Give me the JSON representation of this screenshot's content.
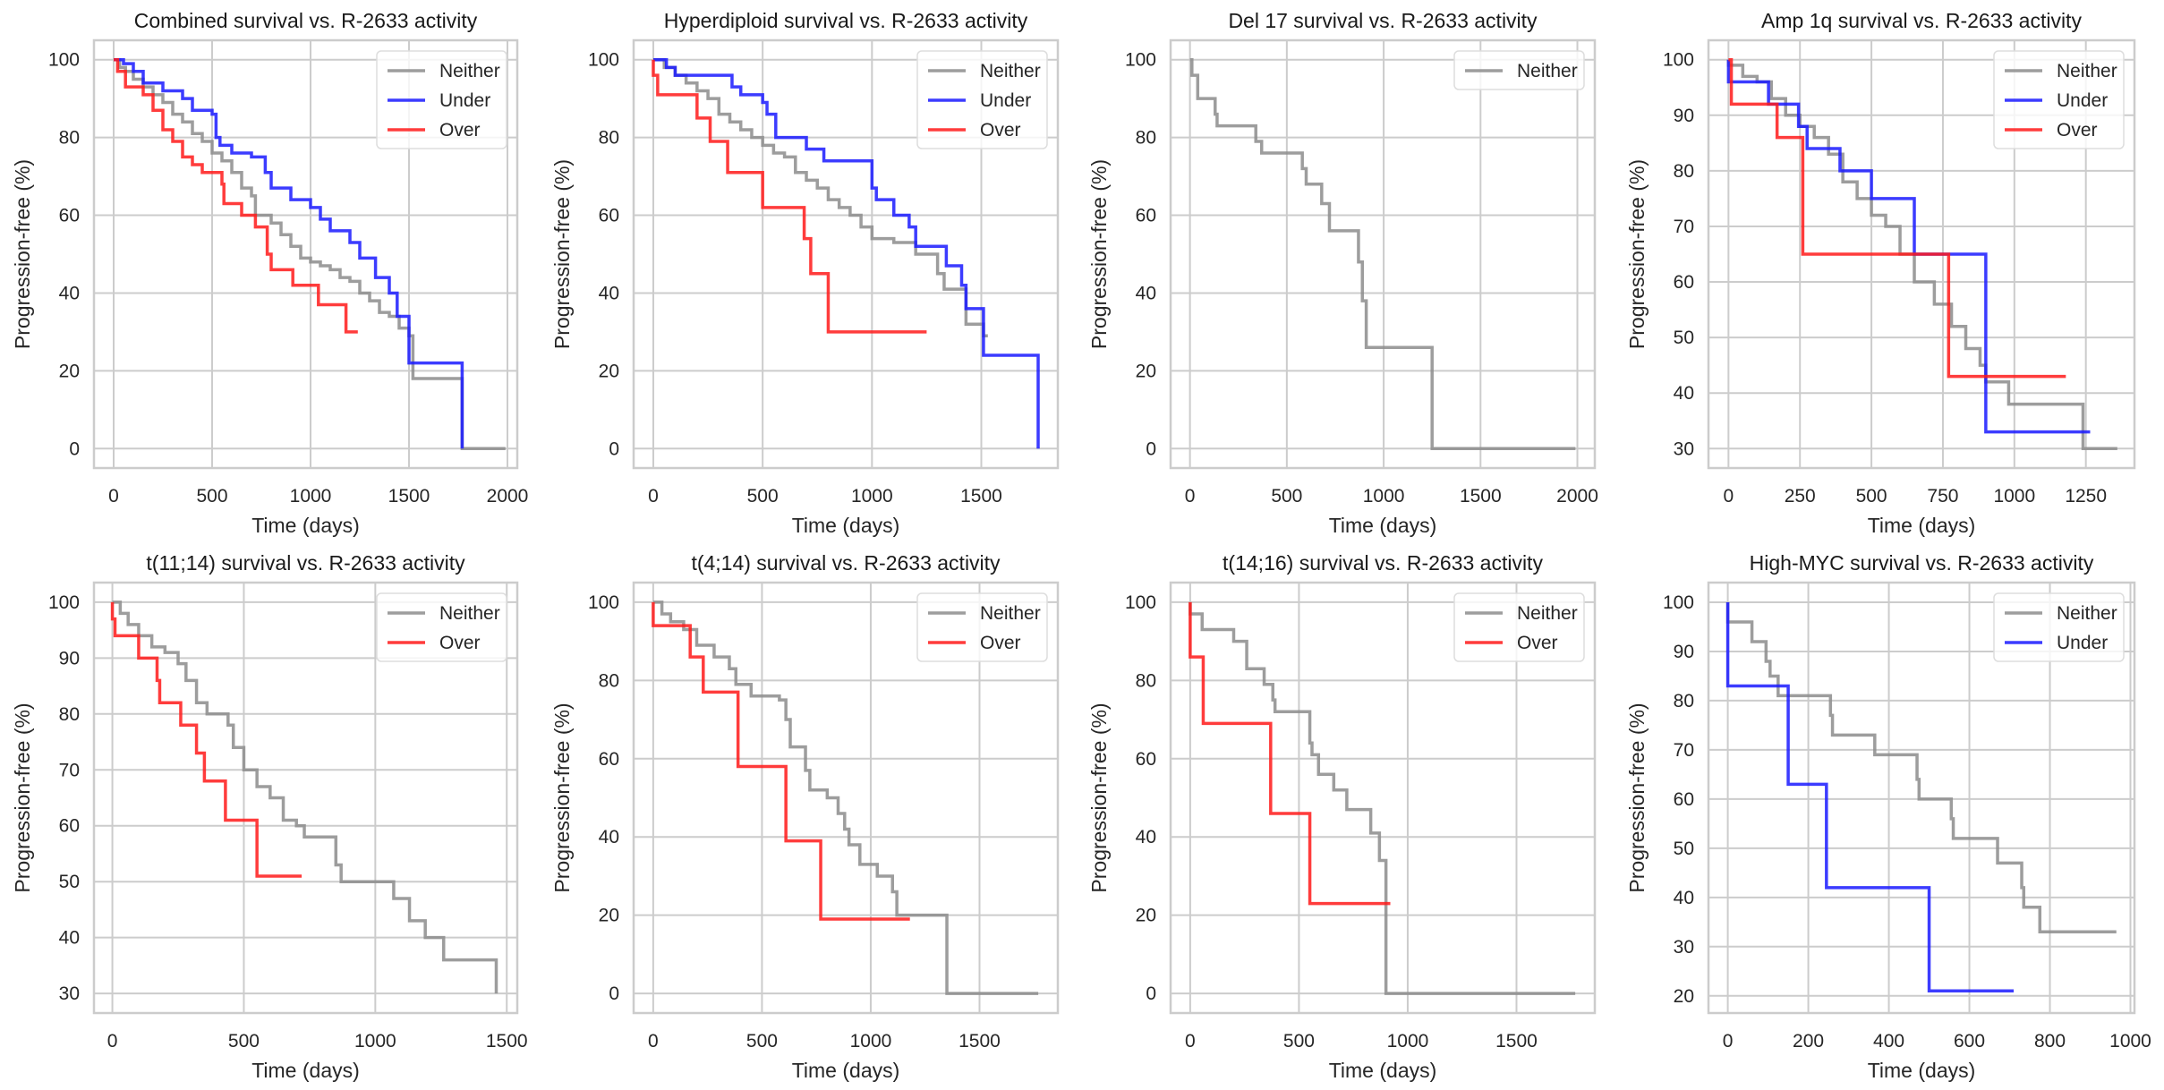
{
  "figure": {
    "layout": "2x4 grid of Kaplan-Meier step plots",
    "colors": {
      "Neither": "#8c8c8c",
      "Under": "#1a1aff",
      "Over": "#ff1a1a",
      "grid": "#cccccc",
      "frame": "#cccccc"
    }
  },
  "chart_data": [
    {
      "type": "line",
      "step": true,
      "title": "Combined survival vs. R-2633 activity",
      "xlabel": "Time (days)",
      "ylabel": "Progression-free (%)",
      "xlim": [
        -100,
        2050
      ],
      "ylim": [
        -5,
        105
      ],
      "xticks": [
        0,
        500,
        1000,
        1500,
        2000
      ],
      "yticks": [
        0,
        20,
        40,
        60,
        80,
        100
      ],
      "grid": true,
      "legend": "top-right",
      "series": [
        {
          "name": "Neither",
          "x": [
            0,
            30,
            60,
            100,
            150,
            200,
            250,
            300,
            350,
            400,
            450,
            500,
            550,
            600,
            650,
            700,
            720,
            800,
            850,
            900,
            950,
            1000,
            1050,
            1100,
            1150,
            1200,
            1250,
            1300,
            1350,
            1400,
            1450,
            1500,
            1520,
            1770,
            1990
          ],
          "y": [
            100,
            98,
            97,
            95,
            93,
            91,
            89,
            86,
            84,
            81,
            79,
            76,
            74,
            71,
            67,
            65,
            60,
            58,
            55,
            52,
            49,
            48,
            47,
            46,
            44,
            43,
            40,
            38,
            35,
            34,
            31,
            29,
            18,
            0,
            0
          ]
        },
        {
          "name": "Under",
          "x": [
            0,
            50,
            100,
            150,
            250,
            350,
            400,
            500,
            520,
            540,
            600,
            700,
            770,
            800,
            900,
            1000,
            1050,
            1100,
            1200,
            1250,
            1330,
            1400,
            1440,
            1500,
            1770
          ],
          "y": [
            100,
            99,
            97,
            94,
            92,
            90,
            87,
            86,
            80,
            78,
            76,
            75,
            71,
            67,
            64,
            62,
            59,
            56,
            53,
            49,
            44,
            40,
            34,
            22,
            0
          ]
        },
        {
          "name": "Over",
          "x": [
            0,
            20,
            60,
            150,
            200,
            250,
            300,
            350,
            400,
            450,
            550,
            560,
            650,
            720,
            780,
            800,
            910,
            1040,
            1180,
            1240
          ],
          "y": [
            100,
            97,
            93,
            91,
            87,
            82,
            79,
            75,
            73,
            71,
            68,
            63,
            60,
            57,
            50,
            46,
            42,
            37,
            30,
            30
          ]
        }
      ]
    },
    {
      "type": "line",
      "step": true,
      "title": "Hyperdiploid survival vs. R-2633 activity",
      "xlabel": "Time (days)",
      "ylabel": "Progression-free (%)",
      "xlim": [
        -90,
        1850
      ],
      "ylim": [
        -5,
        105
      ],
      "xticks": [
        0,
        500,
        1000,
        1500
      ],
      "yticks": [
        0,
        20,
        40,
        60,
        80,
        100
      ],
      "grid": true,
      "legend": "top-right",
      "series": [
        {
          "name": "Neither",
          "x": [
            0,
            50,
            100,
            150,
            200,
            250,
            300,
            350,
            400,
            450,
            500,
            550,
            600,
            650,
            700,
            750,
            800,
            850,
            900,
            950,
            1000,
            1100,
            1200,
            1300,
            1330,
            1430,
            1510,
            1530
          ],
          "y": [
            100,
            98,
            96,
            94,
            92,
            90,
            86,
            84,
            82,
            80,
            78,
            76,
            75,
            71,
            69,
            67,
            64,
            62,
            60,
            57,
            54,
            53,
            50,
            45,
            41,
            32,
            29,
            29
          ]
        },
        {
          "name": "Under",
          "x": [
            0,
            60,
            100,
            340,
            360,
            400,
            500,
            520,
            560,
            700,
            780,
            1000,
            1020,
            1100,
            1170,
            1200,
            1340,
            1410,
            1430,
            1510,
            1760
          ],
          "y": [
            100,
            98,
            96,
            96,
            93,
            91,
            89,
            86,
            80,
            77,
            74,
            67,
            64,
            60,
            57,
            52,
            47,
            42,
            36,
            24,
            0
          ]
        },
        {
          "name": "Over",
          "x": [
            0,
            20,
            200,
            260,
            340,
            500,
            690,
            720,
            800,
            1250
          ],
          "y": [
            96,
            91,
            85,
            79,
            71,
            62,
            54,
            45,
            30,
            30
          ]
        }
      ]
    },
    {
      "type": "line",
      "step": true,
      "title": "Del 17 survival vs. R-2633 activity",
      "xlabel": "Time (days)",
      "ylabel": "Progression-free (%)",
      "xlim": [
        -100,
        2090
      ],
      "ylim": [
        -5,
        105
      ],
      "xticks": [
        0,
        500,
        1000,
        1500,
        2000
      ],
      "yticks": [
        0,
        20,
        40,
        60,
        80,
        100
      ],
      "grid": true,
      "legend": "top-right",
      "series": [
        {
          "name": "Neither",
          "x": [
            0,
            10,
            40,
            130,
            140,
            340,
            370,
            580,
            600,
            680,
            720,
            870,
            890,
            910,
            1250,
            1990
          ],
          "y": [
            100,
            96,
            90,
            86,
            83,
            79,
            76,
            72,
            68,
            63,
            56,
            48,
            38,
            26,
            0,
            0
          ]
        }
      ]
    },
    {
      "type": "line",
      "step": true,
      "title": "Amp 1q survival vs. R-2633 activity",
      "xlabel": "Time (days)",
      "ylabel": "Progression-free (%)",
      "xlim": [
        -70,
        1420
      ],
      "ylim": [
        26.5,
        103.5
      ],
      "xticks": [
        0,
        250,
        500,
        750,
        1000,
        1250
      ],
      "yticks": [
        30,
        40,
        50,
        60,
        70,
        80,
        90,
        100
      ],
      "grid": true,
      "legend": "top-right",
      "series": [
        {
          "name": "Neither",
          "x": [
            0,
            50,
            100,
            150,
            200,
            250,
            300,
            350,
            400,
            450,
            500,
            550,
            600,
            650,
            720,
            780,
            830,
            880,
            900,
            980,
            1240,
            1360
          ],
          "y": [
            99,
            97,
            96,
            93,
            90,
            88,
            86,
            83,
            78,
            75,
            72,
            70,
            65,
            60,
            56,
            52,
            48,
            45,
            42,
            38,
            30,
            30
          ]
        },
        {
          "name": "Under",
          "x": [
            0,
            140,
            245,
            275,
            390,
            500,
            650,
            900,
            1265
          ],
          "y": [
            96,
            92,
            88,
            84,
            80,
            75,
            65,
            33,
            33
          ]
        },
        {
          "name": "Over",
          "x": [
            0,
            10,
            170,
            260,
            770,
            1180
          ],
          "y": [
            100,
            92,
            86,
            65,
            43,
            43
          ]
        }
      ]
    },
    {
      "type": "line",
      "step": true,
      "title": "t(11;14) survival vs. R-2633 activity",
      "xlabel": "Time (days)",
      "ylabel": "Progression-free (%)",
      "xlim": [
        -70,
        1540
      ],
      "ylim": [
        26.5,
        103.5
      ],
      "xticks": [
        0,
        500,
        1000,
        1500
      ],
      "yticks": [
        30,
        40,
        50,
        60,
        70,
        80,
        90,
        100
      ],
      "grid": true,
      "legend": "top-right",
      "series": [
        {
          "name": "Neither",
          "x": [
            0,
            30,
            60,
            100,
            150,
            200,
            250,
            280,
            320,
            360,
            440,
            460,
            500,
            550,
            600,
            650,
            700,
            730,
            850,
            870,
            1070,
            1130,
            1190,
            1260,
            1460
          ],
          "y": [
            100,
            98,
            96,
            94,
            92,
            91,
            89,
            86,
            82,
            80,
            78,
            74,
            70,
            67,
            65,
            61,
            60,
            58,
            53,
            50,
            47,
            43,
            40,
            36,
            30
          ]
        },
        {
          "name": "Over",
          "x": [
            0,
            10,
            100,
            170,
            180,
            260,
            320,
            350,
            430,
            550,
            720
          ],
          "y": [
            97,
            94,
            90,
            86,
            82,
            78,
            73,
            68,
            61,
            51,
            51
          ]
        }
      ]
    },
    {
      "type": "line",
      "step": true,
      "title": "t(4;14) survival vs. R-2633 activity",
      "xlabel": "Time (days)",
      "ylabel": "Progression-free (%)",
      "xlim": [
        -90,
        1860
      ],
      "ylim": [
        -5,
        105
      ],
      "xticks": [
        0,
        500,
        1000,
        1500
      ],
      "yticks": [
        0,
        20,
        40,
        60,
        80,
        100
      ],
      "grid": true,
      "legend": "top-right",
      "series": [
        {
          "name": "Neither",
          "x": [
            0,
            40,
            80,
            140,
            200,
            280,
            350,
            380,
            450,
            580,
            610,
            630,
            700,
            720,
            800,
            850,
            880,
            900,
            950,
            1030,
            1100,
            1120,
            1350,
            1770
          ],
          "y": [
            100,
            97,
            95,
            93,
            89,
            86,
            83,
            79,
            76,
            75,
            70,
            63,
            57,
            52,
            50,
            46,
            42,
            38,
            33,
            30,
            26,
            20,
            0,
            0
          ]
        },
        {
          "name": "Over",
          "x": [
            0,
            170,
            230,
            390,
            610,
            770,
            1180
          ],
          "y": [
            94,
            86,
            77,
            58,
            39,
            19,
            19
          ]
        }
      ]
    },
    {
      "type": "line",
      "step": true,
      "title": "t(14;16) survival vs. R-2633 activity",
      "xlabel": "Time (days)",
      "ylabel": "Progression-free (%)",
      "xlim": [
        -90,
        1860
      ],
      "ylim": [
        -5,
        105
      ],
      "xticks": [
        0,
        500,
        1000,
        1500
      ],
      "yticks": [
        0,
        20,
        40,
        60,
        80,
        100
      ],
      "grid": true,
      "legend": "top-right",
      "series": [
        {
          "name": "Neither",
          "x": [
            0,
            55,
            200,
            260,
            340,
            380,
            390,
            550,
            560,
            590,
            660,
            720,
            830,
            870,
            900,
            1770
          ],
          "y": [
            97,
            93,
            90,
            83,
            79,
            75,
            72,
            64,
            61,
            56,
            52,
            47,
            41,
            34,
            0,
            0
          ]
        },
        {
          "name": "Over",
          "x": [
            0,
            60,
            370,
            550,
            920
          ],
          "y": [
            86,
            69,
            46,
            23,
            23
          ]
        }
      ]
    },
    {
      "type": "line",
      "step": true,
      "title": "High-MYC survival vs. R-2633 activity",
      "xlabel": "Time (days)",
      "ylabel": "Progression-free (%)",
      "xlim": [
        -48,
        1010
      ],
      "ylim": [
        16.5,
        104
      ],
      "xticks": [
        0,
        200,
        400,
        600,
        800,
        1000
      ],
      "yticks": [
        20,
        30,
        40,
        50,
        60,
        70,
        80,
        90,
        100
      ],
      "grid": true,
      "legend": "top-right",
      "series": [
        {
          "name": "Neither",
          "x": [
            0,
            60,
            95,
            105,
            125,
            255,
            260,
            365,
            470,
            475,
            555,
            560,
            670,
            730,
            735,
            775,
            965
          ],
          "y": [
            96,
            92,
            88,
            85,
            81,
            77,
            73,
            69,
            64,
            60,
            56,
            52,
            47,
            42,
            38,
            33,
            33
          ]
        },
        {
          "name": "Under",
          "x": [
            0,
            150,
            245,
            500,
            710
          ],
          "y": [
            83,
            63,
            42,
            21,
            21
          ]
        }
      ]
    }
  ]
}
